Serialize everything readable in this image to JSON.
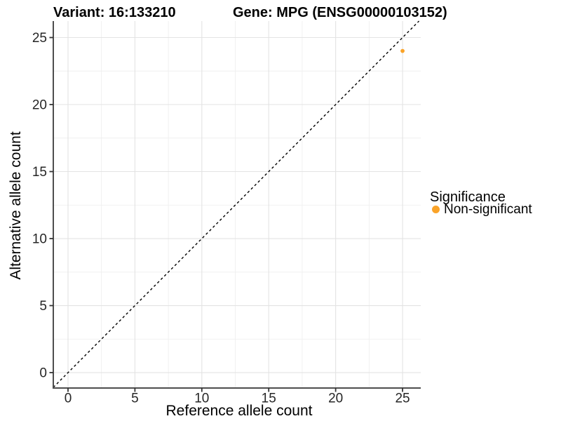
{
  "chart_data": {
    "type": "scatter",
    "titles": {
      "variant": "Variant: 16:133210",
      "gene": "Gene: MPG (ENSG00000103152)"
    },
    "xlabel": "Reference allele count",
    "ylabel": "Alternative allele count",
    "xlim": [
      -1.1,
      26.36
    ],
    "ylim": [
      -1.15,
      26.23
    ],
    "xticks": [
      0,
      5,
      10,
      15,
      20,
      25
    ],
    "yticks": [
      0,
      5,
      10,
      15,
      20,
      25
    ],
    "xminor": [
      2.5,
      7.5,
      12.5,
      17.5,
      22.5
    ],
    "yminor": [
      2.5,
      7.5,
      12.5,
      17.5,
      22.5
    ],
    "grid": "major and minor gridlines on white panel",
    "identity_line": {
      "equation": "y = x",
      "style": "dashed",
      "color": "#000000"
    },
    "series": [
      {
        "name": "Non-significant",
        "color": "#FAA328",
        "points": [
          [
            25,
            24
          ]
        ]
      }
    ],
    "legend": {
      "title": "Significance",
      "position": "right",
      "items": [
        {
          "label": "Non-significant",
          "color": "#FAA328"
        }
      ]
    },
    "colors": {
      "axis_line": "#4D4D4D",
      "tick_mark": "#333333",
      "tick_label": "#262626",
      "grid_major": "#E3E3E3",
      "grid_minor": "#EFEFEF",
      "title": "#000000"
    }
  }
}
